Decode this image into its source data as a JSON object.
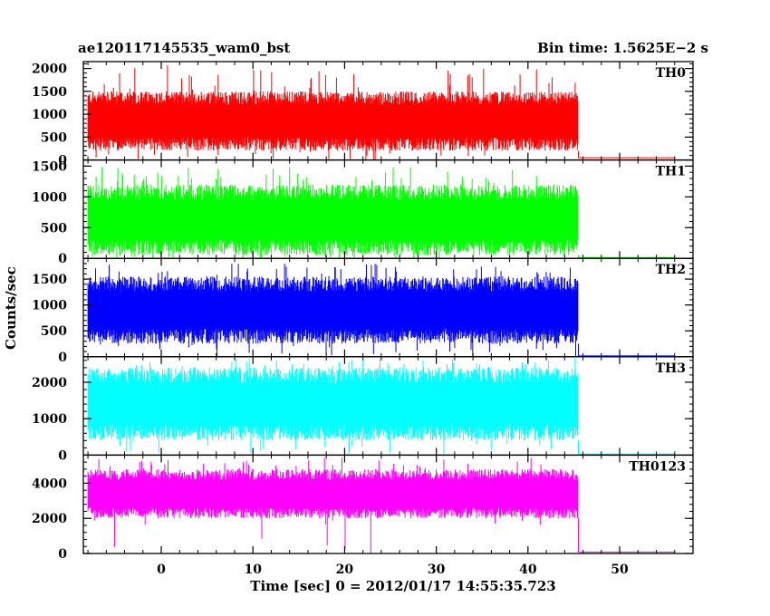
{
  "header": {
    "title": "ae120117145535_wam0_bst",
    "bin_time": "Bin time: 1.5625E−2 s"
  },
  "chart_data": {
    "type": "line",
    "xlabel": "Time [sec] 0 = 2012/01/17 14:55:35.723",
    "ylabel": "Counts/sec",
    "xlim": [
      -8.5,
      58
    ],
    "x_ticks": [
      0,
      10,
      20,
      30,
      40,
      50
    ],
    "data_x_range": [
      -8,
      45.5
    ],
    "post_burst_x_range": [
      45.5,
      56
    ],
    "panels": [
      {
        "name": "TH0",
        "color": "#ff0000",
        "ylim": [
          0,
          2150
        ],
        "y_ticks": [
          0,
          500,
          1000,
          1500,
          2000
        ],
        "typical_low": 200,
        "typical_high": 1500,
        "spike_max": 2100,
        "post_level": 50
      },
      {
        "name": "TH1",
        "color": "#00ff00",
        "ylim": [
          0,
          1600
        ],
        "y_ticks": [
          0,
          500,
          1000,
          1500
        ],
        "typical_low": 50,
        "typical_high": 1200,
        "spike_max": 1500,
        "post_level": 15
      },
      {
        "name": "TH2",
        "color": "#0000ff",
        "ylim": [
          0,
          1900
        ],
        "y_ticks": [
          0,
          500,
          1000,
          1500
        ],
        "typical_low": 250,
        "typical_high": 1550,
        "spike_max": 1800,
        "post_level": 15
      },
      {
        "name": "TH3",
        "color": "#00ffff",
        "ylim": [
          0,
          2700
        ],
        "y_ticks": [
          0,
          1000,
          2000
        ],
        "typical_low": 400,
        "typical_high": 2400,
        "spike_max": 2650,
        "post_level": 30
      },
      {
        "name": "TH0123",
        "color": "#ff00ff",
        "ylim": [
          0,
          5600
        ],
        "y_ticks": [
          0,
          2000,
          4000
        ],
        "typical_low": 2000,
        "typical_high": 4800,
        "spike_max": 5500,
        "post_level": 80
      }
    ]
  }
}
